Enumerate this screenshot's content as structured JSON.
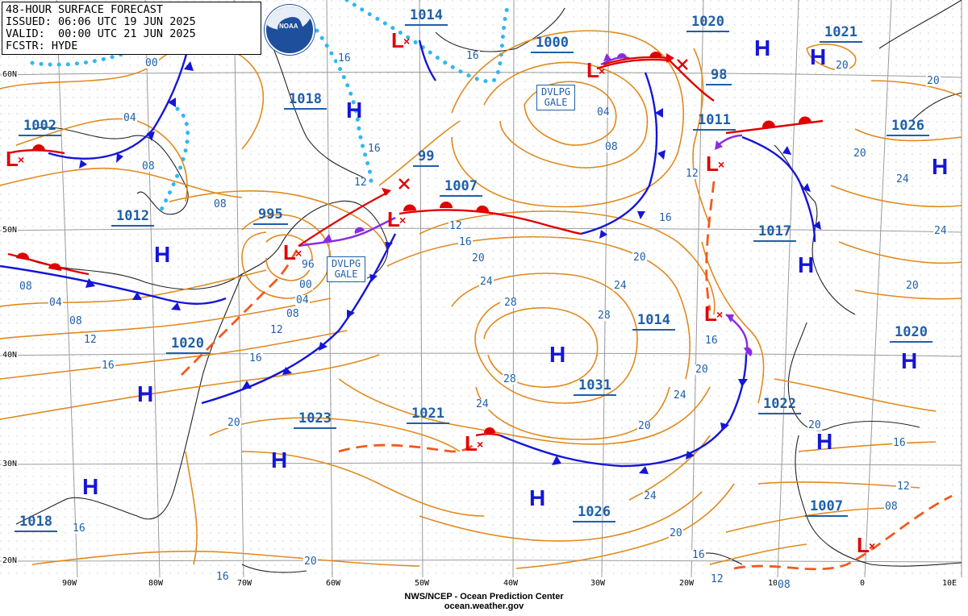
{
  "header": {
    "title": "48-HOUR SURFACE FORECAST",
    "issued": "ISSUED: 06:06 UTC 19 JUN 2025",
    "valid": "VALID:  00:00 UTC 21 JUN 2025",
    "forecaster": "FCSTR: HYDE"
  },
  "footer": {
    "agency": "NWS/NCEP - Ocean Prediction Center",
    "url": "ocean.weather.gov"
  },
  "logo": {
    "text": "NOAA"
  },
  "colors": {
    "isobar": "#e08a1e",
    "high": "#1515d8",
    "low": "#e00000",
    "label": "#1f5fa8",
    "cold_front": "#1515d8",
    "warm_front": "#e00000",
    "occluded_front": "#8a2be2",
    "ice_edge": "#2fb8f0"
  },
  "lat_labels": [
    "60N",
    "50N",
    "40N",
    "30N",
    "20N"
  ],
  "lon_labels": [
    "90W",
    "80W",
    "70W",
    "60W",
    "50W",
    "40W",
    "30W",
    "20W",
    "10",
    "0",
    "10E"
  ],
  "gale_boxes": [
    {
      "line1": "DVLPG",
      "line2": "GALE"
    },
    {
      "line1": "DVLPG",
      "line2": "GALE"
    }
  ],
  "pressure_labels": [
    "1014",
    "1000",
    "1020",
    "1021",
    "1018",
    "1002",
    "99",
    "1007",
    "1011",
    "1026",
    "995",
    "1012",
    "1017",
    "1014",
    "1020",
    "1020",
    "1031",
    "1022",
    "1023",
    "1021",
    "1026",
    "1007",
    "1018",
    "98"
  ],
  "isobar_values": [
    "00",
    "16",
    "16",
    "04",
    "08",
    "08",
    "04",
    "08",
    "12",
    "12",
    "16",
    "16",
    "20",
    "20",
    "24",
    "24",
    "28",
    "28",
    "28",
    "24",
    "20",
    "16",
    "12",
    "08",
    "04",
    "00",
    "96",
    "04",
    "08",
    "12",
    "16",
    "20",
    "24",
    "20",
    "24",
    "16",
    "16",
    "12",
    "20",
    "08",
    "20",
    "24",
    "20",
    "16",
    "20",
    "12",
    "08",
    "16",
    "24",
    "20",
    "16",
    "12",
    "08",
    "20",
    "16",
    "20"
  ],
  "systems": {
    "highs": [
      "H",
      "H",
      "H",
      "H",
      "H",
      "H",
      "H",
      "H",
      "H",
      "H",
      "H",
      "H",
      "H",
      "H",
      "H"
    ],
    "lows": [
      "L",
      "L",
      "L",
      "L",
      "L",
      "L",
      "L",
      "L",
      "L",
      "L"
    ]
  }
}
